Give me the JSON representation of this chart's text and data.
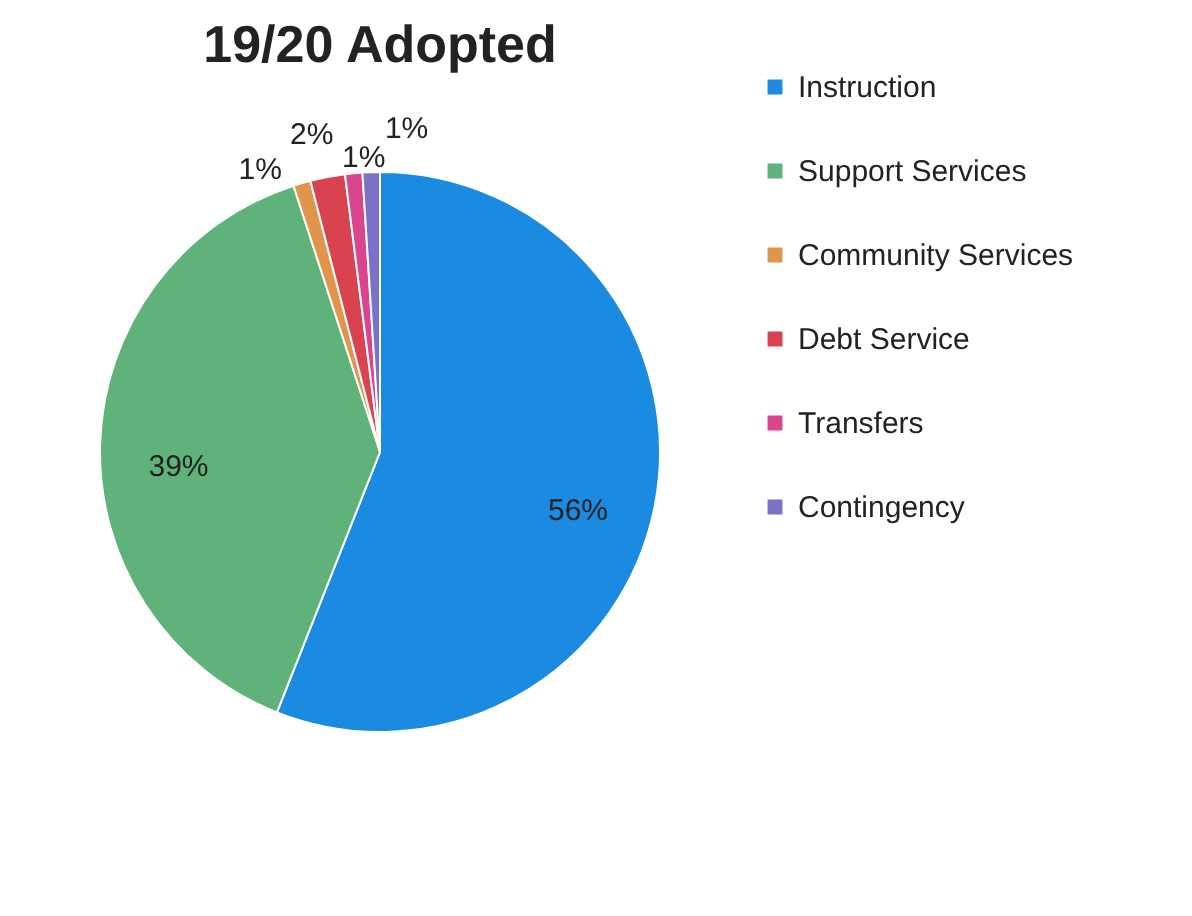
{
  "chart_data": {
    "type": "pie",
    "title": "19/20 Adopted",
    "categories": [
      "Instruction",
      "Support Services",
      "Community Services",
      "Debt Service",
      "Transfers",
      "Contingency"
    ],
    "values": [
      56,
      39,
      1,
      2,
      1,
      1
    ],
    "value_labels": [
      "56%",
      "39%",
      "1%",
      "2%",
      "1%",
      "1%"
    ],
    "colors": [
      "#1a8be0",
      "#5fb37a",
      "#e0954a",
      "#d9434f",
      "#d9468e",
      "#7b72c8"
    ],
    "legend": "right"
  }
}
